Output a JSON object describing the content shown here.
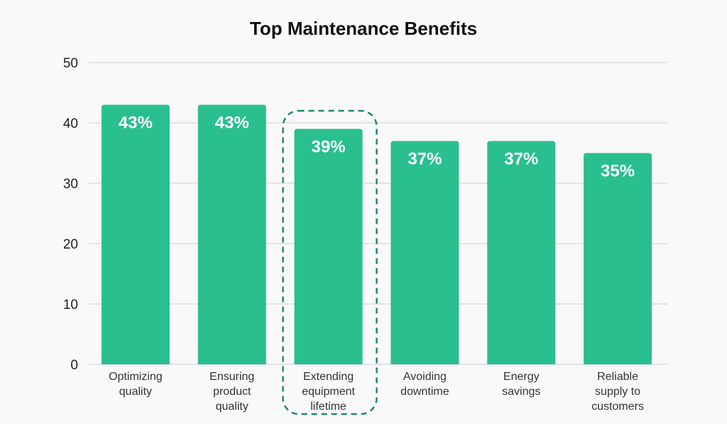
{
  "chart_data": {
    "type": "bar",
    "title": "Top Maintenance Benefits",
    "categories": [
      [
        "Optimizing",
        "quality"
      ],
      [
        "Ensuring",
        "product",
        "quality"
      ],
      [
        "Extending",
        "equipment",
        "lifetime"
      ],
      [
        "Avoiding",
        "downtime"
      ],
      [
        "Energy",
        "savings"
      ],
      [
        "Reliable",
        "supply to",
        "customers"
      ]
    ],
    "values": [
      43,
      43,
      39,
      37,
      37,
      35
    ],
    "data_labels": [
      "43%",
      "43%",
      "39%",
      "37%",
      "37%",
      "35%"
    ],
    "highlighted_index": 2,
    "ylim": [
      0,
      50
    ],
    "yticks": [
      0,
      10,
      20,
      30,
      40,
      50
    ],
    "xlabel": "",
    "ylabel": "",
    "grid": true,
    "colors": {
      "bar": "#2abf8f",
      "highlight": "#1f8a64",
      "grid": "#dcdcdc"
    }
  }
}
